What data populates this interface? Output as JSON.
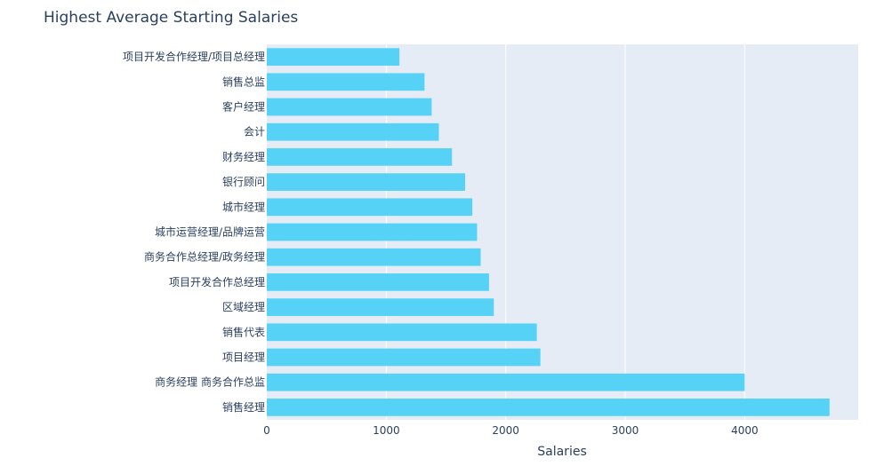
{
  "chart_data": {
    "type": "bar",
    "orientation": "horizontal",
    "title": "Highest Average Starting Salaries",
    "xlabel": "Salaries",
    "ylabel": "",
    "xlim": [
      0,
      4950
    ],
    "x_ticks": [
      0,
      1000,
      2000,
      3000,
      4000
    ],
    "grid": true,
    "bar_color": "#57d2f7",
    "plot_background": "#e5ecf6",
    "text_color": "#2a3f5f",
    "categories": [
      "项目开发合作经理/项目总经理",
      "销售总监",
      "客户经理",
      "会计",
      "财务经理",
      "银行顾问",
      "城市经理",
      "城市运营经理/品牌运营",
      "商务合作总经理/政务经理",
      "项目开发合作总经理",
      "区域经理",
      "销售代表",
      "项目经理",
      "商务经理 商务合作总监",
      "销售经理"
    ],
    "values": [
      1110,
      1320,
      1380,
      1440,
      1550,
      1660,
      1720,
      1760,
      1790,
      1860,
      1900,
      2260,
      2290,
      4000,
      4710
    ]
  }
}
